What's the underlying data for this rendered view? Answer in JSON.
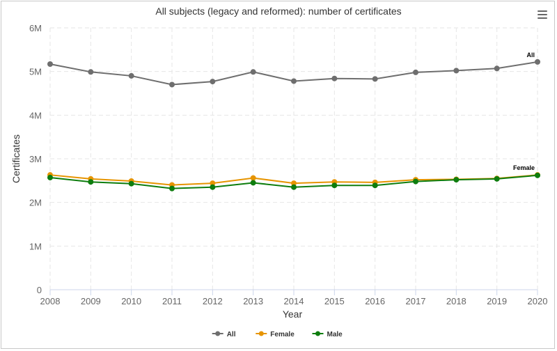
{
  "header": {
    "title": "All subjects (legacy and reformed): number of certificates",
    "menu_icon": "hamburger-menu-icon"
  },
  "colors": {
    "all": "#6e6e6e",
    "female": "#e69400",
    "male": "#0e7d0e",
    "grid": "#e6e6e6",
    "axis": "#ccd6eb"
  },
  "chart_data": {
    "type": "line",
    "title": "All subjects (legacy and reformed): number of certificates",
    "xlabel": "Year",
    "ylabel": "Certificates",
    "x": [
      "2008",
      "2009",
      "2010",
      "2011",
      "2012",
      "2013",
      "2014",
      "2015",
      "2016",
      "2017",
      "2018",
      "2019",
      "2020"
    ],
    "ylim": [
      0,
      6000000
    ],
    "y_ticks": [
      0,
      1000000,
      2000000,
      3000000,
      4000000,
      5000000,
      6000000
    ],
    "y_tick_labels": [
      "0",
      "1M",
      "2M",
      "3M",
      "4M",
      "5M",
      "6M"
    ],
    "grid": true,
    "legend": "bottom-center",
    "series": [
      {
        "name": "All",
        "color": "#6e6e6e",
        "end_label": "All",
        "values": [
          5170000,
          4990000,
          4900000,
          4700000,
          4770000,
          4990000,
          4780000,
          4840000,
          4830000,
          4980000,
          5020000,
          5070000,
          5220000
        ]
      },
      {
        "name": "Female",
        "color": "#e69400",
        "end_label": "Female",
        "values": [
          2630000,
          2540000,
          2490000,
          2400000,
          2440000,
          2560000,
          2440000,
          2470000,
          2460000,
          2520000,
          2530000,
          2550000,
          2630000
        ]
      },
      {
        "name": "Male",
        "color": "#0e7d0e",
        "end_label": "",
        "values": [
          2570000,
          2470000,
          2430000,
          2320000,
          2350000,
          2450000,
          2350000,
          2390000,
          2390000,
          2480000,
          2520000,
          2540000,
          2620000
        ]
      }
    ]
  }
}
